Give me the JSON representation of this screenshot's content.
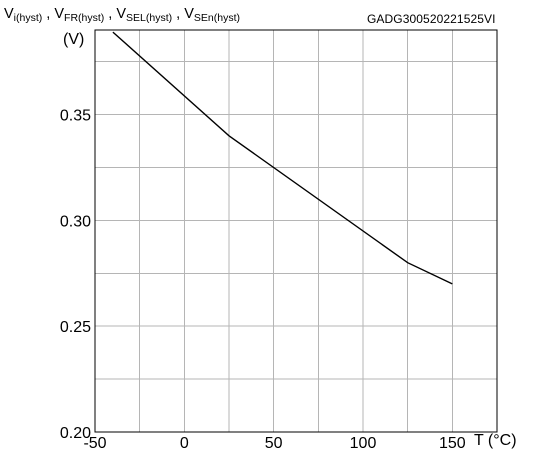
{
  "figure_code": "GADG300520221525VI",
  "y_axis": {
    "parts": [
      {
        "main": "V",
        "sub": "i(hyst)"
      },
      {
        "main": "V",
        "sub": "FR(hyst)"
      },
      {
        "main": "V",
        "sub": "SEL(hyst)"
      },
      {
        "main": "V",
        "sub": "SEn(hyst)"
      }
    ],
    "separator": " , ",
    "unit": "(V)"
  },
  "x_axis_title": "T (°C)",
  "chart_data": {
    "type": "line",
    "title": "",
    "xlabel": "T (°C)",
    "ylabel": "V(hyst) (V)",
    "xlim": [
      -50,
      175
    ],
    "ylim": [
      0.2,
      0.39
    ],
    "xticks": [
      -50,
      0,
      50,
      100,
      150
    ],
    "xtick_labels": [
      "-50",
      "0",
      "50",
      "100",
      "150"
    ],
    "yticks": [
      0.2,
      0.25,
      0.3,
      0.35
    ],
    "ytick_labels": [
      "0.20",
      "0.25",
      "0.30",
      "0.35"
    ],
    "x_grid_step": 25,
    "y_grid_step": 0.025,
    "grid": true,
    "series": [
      {
        "x": [
          -40,
          25,
          125,
          150
        ],
        "y": [
          0.389,
          0.34,
          0.28,
          0.27
        ]
      }
    ]
  }
}
